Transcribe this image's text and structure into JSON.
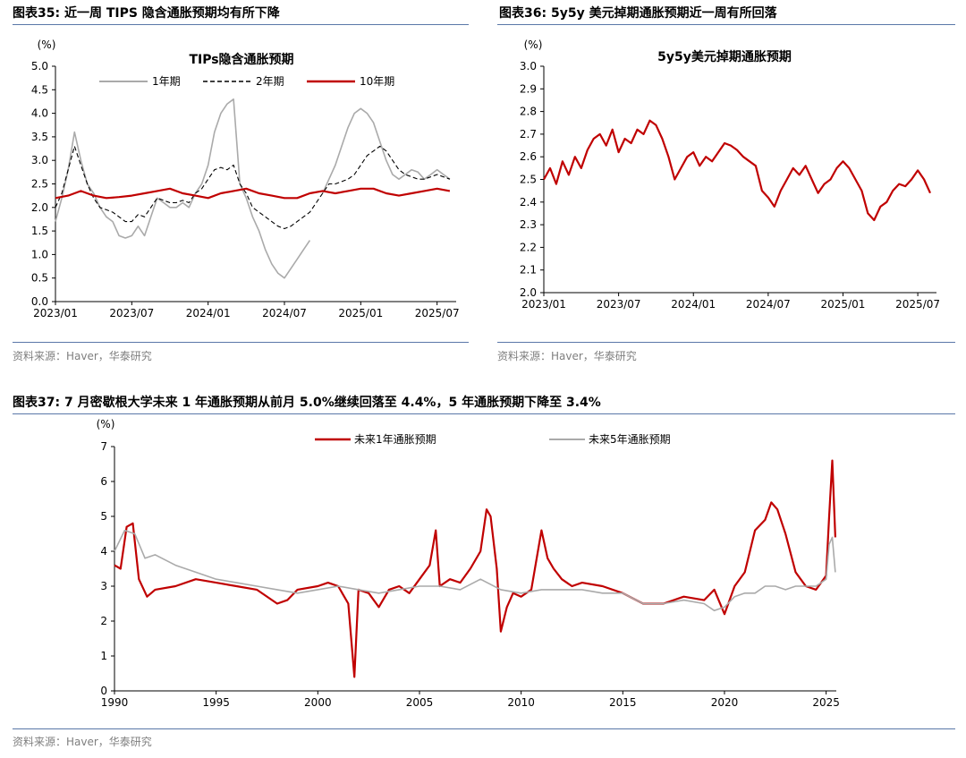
{
  "colors": {
    "red": "#c00000",
    "gray": "#aaaaaa",
    "black": "#000000",
    "rule": "#5a77a8",
    "source": "#7f7f7f"
  },
  "figures": {
    "fig35": {
      "heading": "图表35:  近一周 TIPS 隐含通胀预期均有所下降",
      "source": "资料来源：Haver，华泰研究"
    },
    "fig36": {
      "heading": "图表36:  5y5y 美元掉期通胀预期近一周有所回落",
      "source": "资料来源：Haver，华泰研究"
    },
    "fig37": {
      "heading": "图表37:  7 月密歇根大学未来 1 年通胀预期从前月 5.0%继续回落至 4.4%，5 年通胀预期下降至 3.4%",
      "source": "资料来源：Haver，华泰研究"
    }
  },
  "chart_data": [
    {
      "id": "chart35",
      "type": "line",
      "title": "TIPs隐含通胀预期",
      "ylabel": "(%)",
      "ylim": [
        0.0,
        5.0
      ],
      "yticks": [
        "0.0",
        "0.5",
        "1.0",
        "1.5",
        "2.0",
        "2.5",
        "3.0",
        "3.5",
        "4.0",
        "4.5",
        "5.0"
      ],
      "xticks": [
        "2023/01",
        "2023/07",
        "2024/01",
        "2024/07",
        "2025/01",
        "2025/07"
      ],
      "xticks_t": [
        0,
        6,
        12,
        18,
        24,
        30
      ],
      "xlim": [
        0,
        31.5
      ],
      "legend_position": "top",
      "series": [
        {
          "name": "1年期",
          "style": "gray",
          "t": [
            0,
            0.5,
            1,
            1.5,
            2,
            2.5,
            3,
            3.5,
            4,
            4.5,
            5,
            5.5,
            6,
            6.5,
            7,
            7.5,
            8,
            8.5,
            9,
            9.5,
            10,
            10.5,
            11,
            11.5,
            12,
            12.5,
            13,
            13.5,
            14,
            14.5,
            15,
            15.5,
            16,
            16.5,
            17,
            17.5,
            18,
            18.5,
            19,
            19.5,
            20,
            20.5,
            21,
            21.5,
            22,
            22.5,
            23,
            23.5,
            24,
            24.5,
            25,
            25.5,
            26,
            26.5,
            27,
            27.5,
            28,
            28.5,
            29,
            29.5,
            30,
            30.5,
            31
          ],
          "values": [
            1.7,
            2.2,
            2.8,
            3.6,
            3.0,
            2.5,
            2.3,
            2.0,
            1.8,
            1.7,
            1.4,
            1.35,
            1.4,
            1.6,
            1.4,
            1.8,
            2.2,
            2.1,
            2.0,
            2.0,
            2.1,
            2.0,
            2.3,
            2.5,
            2.9,
            3.6,
            4.0,
            4.2,
            4.3,
            2.5,
            2.2,
            1.8,
            1.5,
            1.1,
            0.8,
            0.6,
            0.5,
            0.7,
            0.9,
            1.1,
            1.3,
            null,
            2.3,
            2.6,
            2.9,
            3.3,
            3.7,
            4.0,
            4.1,
            4.0,
            3.8,
            3.4,
            3.0,
            2.7,
            2.6,
            2.7,
            2.8,
            2.75,
            2.6,
            2.7,
            2.8,
            2.7,
            2.6
          ]
        },
        {
          "name": "2年期",
          "style": "dashed",
          "t": [
            0,
            0.5,
            1,
            1.5,
            2,
            2.5,
            3,
            3.5,
            4,
            4.5,
            5,
            5.5,
            6,
            6.5,
            7,
            7.5,
            8,
            8.5,
            9,
            9.5,
            10,
            10.5,
            11,
            11.5,
            12,
            12.5,
            13,
            13.5,
            14,
            14.5,
            15,
            15.5,
            16,
            16.5,
            17,
            17.5,
            18,
            18.5,
            19,
            19.5,
            20,
            20.5,
            21,
            21.5,
            22,
            22.5,
            23,
            23.5,
            24,
            24.5,
            25,
            25.5,
            26,
            26.5,
            27,
            27.5,
            28,
            28.5,
            29,
            29.5,
            30,
            30.5,
            31
          ],
          "values": [
            2.0,
            2.3,
            2.8,
            3.3,
            2.9,
            2.5,
            2.2,
            2.0,
            1.95,
            1.9,
            1.8,
            1.7,
            1.7,
            1.85,
            1.8,
            2.0,
            2.2,
            2.15,
            2.1,
            2.1,
            2.15,
            2.1,
            2.3,
            2.4,
            2.6,
            2.8,
            2.85,
            2.8,
            2.9,
            2.5,
            2.3,
            2.0,
            1.9,
            1.8,
            1.7,
            1.6,
            1.55,
            1.6,
            1.7,
            1.8,
            1.9,
            2.1,
            2.3,
            2.5,
            2.5,
            2.55,
            2.6,
            2.7,
            2.9,
            3.1,
            3.2,
            3.3,
            3.2,
            3.0,
            2.8,
            2.7,
            2.65,
            2.6,
            2.6,
            2.65,
            2.7,
            2.65,
            2.6
          ]
        },
        {
          "name": "10年期",
          "style": "red",
          "t": [
            0,
            1,
            2,
            3,
            4,
            5,
            6,
            7,
            8,
            9,
            10,
            11,
            12,
            13,
            14,
            15,
            16,
            17,
            18,
            19,
            20,
            21,
            22,
            23,
            24,
            25,
            26,
            27,
            28,
            29,
            30,
            31
          ],
          "values": [
            2.2,
            2.25,
            2.35,
            2.25,
            2.2,
            2.22,
            2.25,
            2.3,
            2.35,
            2.4,
            2.3,
            2.25,
            2.2,
            2.3,
            2.35,
            2.4,
            2.3,
            2.25,
            2.2,
            2.2,
            2.3,
            2.35,
            2.3,
            2.35,
            2.4,
            2.4,
            2.3,
            2.25,
            2.3,
            2.35,
            2.4,
            2.35
          ]
        }
      ]
    },
    {
      "id": "chart36",
      "type": "line",
      "title": "5y5y美元掉期通胀预期",
      "ylabel": "(%)",
      "ylim": [
        2.0,
        3.0
      ],
      "yticks": [
        "2.0",
        "2.1",
        "2.2",
        "2.3",
        "2.4",
        "2.5",
        "2.6",
        "2.7",
        "2.8",
        "2.9",
        "3.0"
      ],
      "xticks": [
        "2023/01",
        "2023/07",
        "2024/01",
        "2024/07",
        "2025/01",
        "2025/07"
      ],
      "xticks_t": [
        0,
        6,
        12,
        18,
        24,
        30
      ],
      "xlim": [
        0,
        31.5
      ],
      "series": [
        {
          "name": "5y5y",
          "style": "red",
          "t": [
            0,
            0.5,
            1,
            1.5,
            2,
            2.5,
            3,
            3.5,
            4,
            4.5,
            5,
            5.5,
            6,
            6.5,
            7,
            7.5,
            8,
            8.5,
            9,
            9.5,
            10,
            10.5,
            11,
            11.5,
            12,
            12.5,
            13,
            13.5,
            14,
            14.5,
            15,
            15.5,
            16,
            16.5,
            17,
            17.5,
            18,
            18.5,
            19,
            19.5,
            20,
            20.5,
            21,
            21.5,
            22,
            22.5,
            23,
            23.5,
            24,
            24.5,
            25,
            25.5,
            26,
            26.5,
            27,
            27.5,
            28,
            28.5,
            29,
            29.5,
            30,
            30.5,
            31
          ],
          "values": [
            2.5,
            2.55,
            2.48,
            2.58,
            2.52,
            2.6,
            2.55,
            2.63,
            2.68,
            2.7,
            2.65,
            2.72,
            2.62,
            2.68,
            2.66,
            2.72,
            2.7,
            2.76,
            2.74,
            2.68,
            2.6,
            2.5,
            2.55,
            2.6,
            2.62,
            2.56,
            2.6,
            2.58,
            2.62,
            2.66,
            2.65,
            2.63,
            2.6,
            2.58,
            2.56,
            2.45,
            2.42,
            2.38,
            2.45,
            2.5,
            2.55,
            2.52,
            2.56,
            2.5,
            2.44,
            2.48,
            2.5,
            2.55,
            2.58,
            2.55,
            2.5,
            2.45,
            2.35,
            2.32,
            2.38,
            2.4,
            2.45,
            2.48,
            2.47,
            2.5,
            2.54,
            2.5,
            2.44
          ]
        }
      ]
    },
    {
      "id": "chart37",
      "type": "line",
      "ylabel": "(%)",
      "ylim": [
        0,
        7
      ],
      "yticks": [
        "0",
        "1",
        "2",
        "3",
        "4",
        "5",
        "6",
        "7"
      ],
      "xticks": [
        "1990",
        "1995",
        "2000",
        "2005",
        "2010",
        "2015",
        "2020",
        "2025"
      ],
      "xticks_t": [
        1990,
        1995,
        2000,
        2005,
        2010,
        2015,
        2020,
        2025
      ],
      "xlim": [
        1990,
        2025.5
      ],
      "legend_position": "top",
      "series": [
        {
          "name": "未来1年通胀预期",
          "style": "red",
          "t": [
            1990,
            1990.3,
            1990.6,
            1990.9,
            1991.2,
            1991.6,
            1992,
            1993,
            1994,
            1995,
            1996,
            1997,
            1998,
            1998.5,
            1999,
            2000,
            2000.5,
            2001,
            2001.5,
            2001.8,
            2002,
            2002.5,
            2003,
            2003.5,
            2004,
            2004.5,
            2005,
            2005.5,
            2005.8,
            2006,
            2006.5,
            2007,
            2007.5,
            2008,
            2008.3,
            2008.5,
            2008.8,
            2009,
            2009.3,
            2009.6,
            2010,
            2010.5,
            2011,
            2011.3,
            2011.6,
            2012,
            2012.5,
            2013,
            2014,
            2015,
            2016,
            2017,
            2018,
            2019,
            2019.5,
            2020,
            2020.5,
            2021,
            2021.5,
            2022,
            2022.3,
            2022.6,
            2023,
            2023.5,
            2024,
            2024.5,
            2025,
            2025.15,
            2025.3,
            2025.45
          ],
          "values": [
            3.6,
            3.5,
            4.7,
            4.8,
            3.2,
            2.7,
            2.9,
            3.0,
            3.2,
            3.1,
            3.0,
            2.9,
            2.5,
            2.6,
            2.9,
            3.0,
            3.1,
            3.0,
            2.5,
            0.4,
            2.9,
            2.8,
            2.4,
            2.9,
            3.0,
            2.8,
            3.2,
            3.6,
            4.6,
            3.0,
            3.2,
            3.1,
            3.5,
            4.0,
            5.2,
            5.0,
            3.5,
            1.7,
            2.4,
            2.8,
            2.7,
            2.9,
            4.6,
            3.8,
            3.5,
            3.2,
            3.0,
            3.1,
            3.0,
            2.8,
            2.5,
            2.5,
            2.7,
            2.6,
            2.9,
            2.2,
            3.0,
            3.4,
            4.6,
            4.9,
            5.4,
            5.2,
            4.5,
            3.4,
            3.0,
            2.9,
            3.3,
            5.0,
            6.6,
            4.4
          ]
        },
        {
          "name": "未来5年通胀预期",
          "style": "gray",
          "t": [
            1990,
            1990.5,
            1991,
            1991.5,
            1992,
            1993,
            1994,
            1995,
            1996,
            1997,
            1998,
            1999,
            2000,
            2001,
            2002,
            2003,
            2004,
            2005,
            2006,
            2007,
            2008,
            2009,
            2010,
            2011,
            2012,
            2013,
            2014,
            2015,
            2016,
            2017,
            2018,
            2019,
            2019.5,
            2020,
            2020.5,
            2021,
            2021.5,
            2022,
            2022.5,
            2023,
            2023.5,
            2024,
            2024.5,
            2025,
            2025.15,
            2025.3,
            2025.45
          ],
          "values": [
            4.0,
            4.6,
            4.5,
            3.8,
            3.9,
            3.6,
            3.4,
            3.2,
            3.1,
            3.0,
            2.9,
            2.8,
            2.9,
            3.0,
            2.9,
            2.8,
            2.9,
            3.0,
            3.0,
            2.9,
            3.2,
            2.9,
            2.8,
            2.9,
            2.9,
            2.9,
            2.8,
            2.8,
            2.5,
            2.5,
            2.6,
            2.5,
            2.3,
            2.4,
            2.7,
            2.8,
            2.8,
            3.0,
            3.0,
            2.9,
            3.0,
            3.0,
            3.0,
            3.2,
            4.2,
            4.4,
            3.4
          ]
        }
      ]
    }
  ]
}
